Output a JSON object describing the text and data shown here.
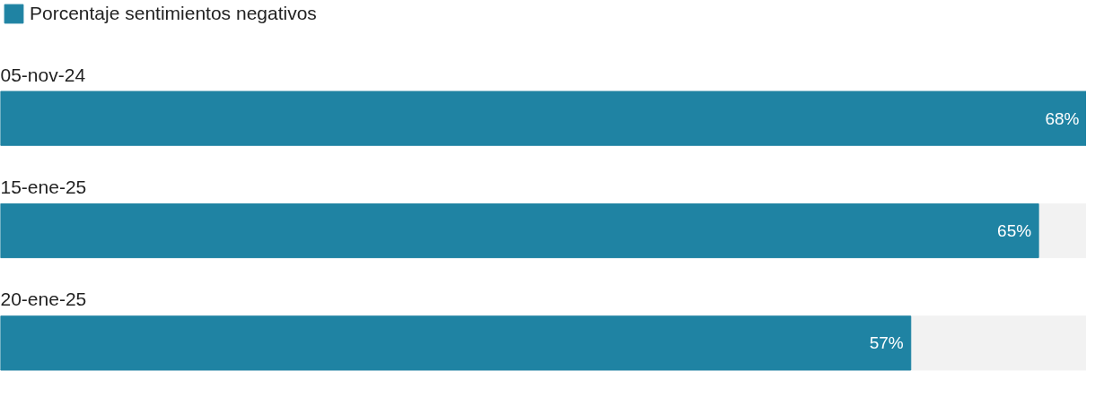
{
  "chart_data": {
    "type": "bar",
    "orientation": "horizontal",
    "categories": [
      "05-nov-24",
      "15-ene-25",
      "20-ene-25"
    ],
    "series": [
      {
        "name": "Porcentaje sentimientos negativos",
        "color": "#1f83a3",
        "values": [
          68,
          65,
          57
        ],
        "value_labels": [
          "68%",
          "65%",
          "57%"
        ]
      }
    ],
    "legend": "top left"
  }
}
